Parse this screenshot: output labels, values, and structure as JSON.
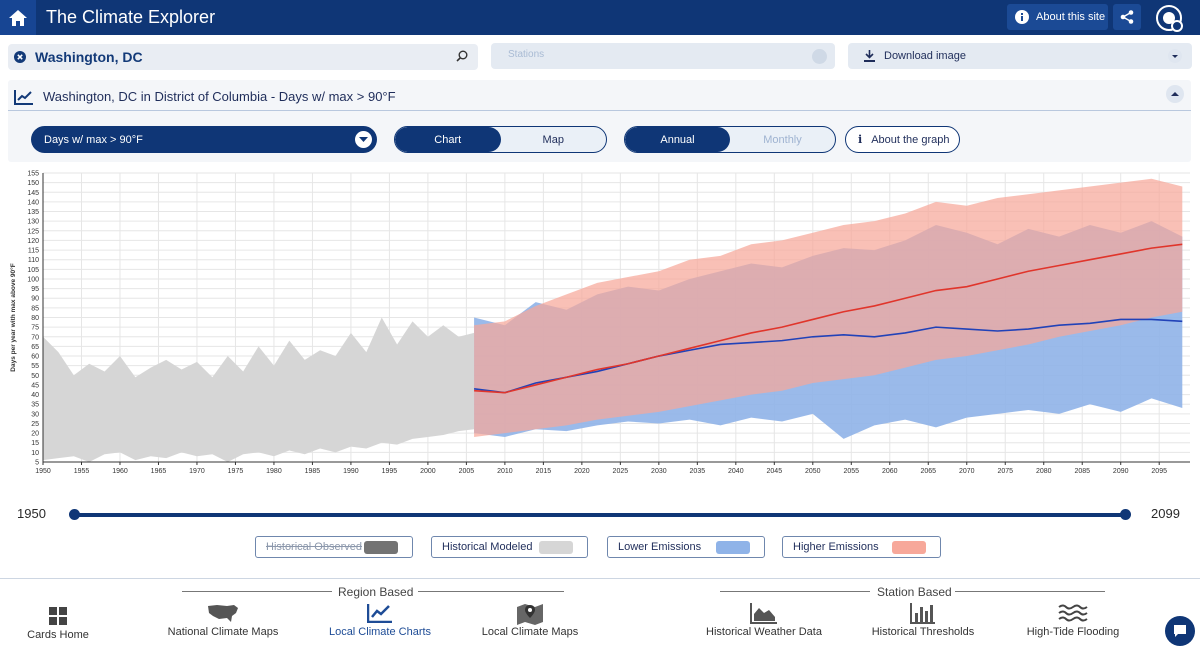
{
  "app": {
    "title": "The Climate Explorer",
    "about_label": "About this site"
  },
  "search": {
    "location": "Washington, DC"
  },
  "stations": {
    "placeholder": "Stations"
  },
  "download": {
    "label": "Download image"
  },
  "panel": {
    "title": "Washington, DC in District of Columbia - Days w/ max > 90°F"
  },
  "variable": {
    "selected": "Days w/ max > 90°F"
  },
  "view_toggle": {
    "chart": "Chart",
    "map": "Map"
  },
  "period_toggle": {
    "annual": "Annual",
    "monthly": "Monthly"
  },
  "about_graph": {
    "label": "About the graph"
  },
  "range": {
    "start": "1950",
    "end": "2099"
  },
  "legend": [
    {
      "label": "Historical Observed",
      "color": "#737373",
      "enabled": false
    },
    {
      "label": "Historical Modeled",
      "color": "#d6d6d6",
      "enabled": true
    },
    {
      "label": "Lower Emissions",
      "color": "#8fb3e8",
      "enabled": true
    },
    {
      "label": "Higher Emissions",
      "color": "#f7a89a",
      "enabled": true
    }
  ],
  "footer": {
    "region_label": "Region Based",
    "station_label": "Station Based",
    "cards_home": "Cards Home",
    "national_maps": "National Climate Maps",
    "local_charts": "Local Climate Charts",
    "local_maps": "Local Climate Maps",
    "weather_data": "Historical Weather Data",
    "thresholds": "Historical Thresholds",
    "tide_flooding": "High-Tide Flooding"
  },
  "chart_data": {
    "type": "area",
    "ylabel": "Days per year with max above 90°F",
    "xlabel": "",
    "xlim": [
      1950,
      2099
    ],
    "ylim": [
      5,
      155
    ],
    "y_ticks": [
      5,
      10,
      15,
      20,
      25,
      30,
      35,
      40,
      45,
      50,
      55,
      60,
      65,
      70,
      75,
      80,
      85,
      90,
      95,
      100,
      105,
      110,
      115,
      120,
      125,
      130,
      135,
      140,
      145,
      150,
      155
    ],
    "x_ticks": [
      1950,
      1955,
      1960,
      1965,
      1970,
      1975,
      1980,
      1985,
      1990,
      1995,
      2000,
      2005,
      2010,
      2015,
      2020,
      2025,
      2030,
      2035,
      2040,
      2045,
      2050,
      2055,
      2060,
      2065,
      2070,
      2075,
      2080,
      2085,
      2090,
      2095
    ],
    "series": [
      {
        "name": "Historical Modeled",
        "color": "#d6d6d6",
        "x": [
          1950,
          1952,
          1954,
          1956,
          1958,
          1960,
          1962,
          1964,
          1966,
          1968,
          1970,
          1972,
          1974,
          1976,
          1978,
          1980,
          1982,
          1984,
          1986,
          1988,
          1990,
          1992,
          1994,
          1996,
          1998,
          2000,
          2002,
          2004,
          2006
        ],
        "min": [
          6,
          7,
          8,
          5,
          9,
          10,
          6,
          8,
          7,
          10,
          8,
          9,
          5,
          9,
          10,
          8,
          11,
          9,
          12,
          10,
          13,
          12,
          15,
          14,
          17,
          18,
          19,
          21,
          22
        ],
        "max": [
          70,
          62,
          50,
          56,
          52,
          60,
          49,
          54,
          58,
          53,
          57,
          49,
          60,
          52,
          65,
          55,
          68,
          58,
          63,
          60,
          72,
          62,
          80,
          66,
          78,
          70,
          76,
          70,
          72
        ]
      },
      {
        "name": "Lower Emissions",
        "color": "#8fb3e8",
        "x": [
          2006,
          2010,
          2014,
          2018,
          2022,
          2026,
          2030,
          2034,
          2038,
          2042,
          2046,
          2050,
          2054,
          2058,
          2062,
          2066,
          2070,
          2074,
          2078,
          2082,
          2086,
          2090,
          2094,
          2098
        ],
        "min": [
          20,
          18,
          22,
          21,
          24,
          26,
          25,
          27,
          24,
          28,
          26,
          30,
          17,
          24,
          27,
          23,
          28,
          30,
          32,
          30,
          35,
          31,
          38,
          33
        ],
        "max": [
          80,
          76,
          88,
          84,
          92,
          96,
          94,
          100,
          104,
          108,
          106,
          112,
          116,
          115,
          120,
          128,
          124,
          118,
          126,
          122,
          128,
          124,
          130,
          122
        ],
        "mean": [
          43,
          41,
          46,
          49,
          52,
          56,
          60,
          63,
          66,
          67,
          68,
          70,
          71,
          70,
          72,
          75,
          74,
          73,
          74,
          76,
          77,
          79,
          79,
          78
        ]
      },
      {
        "name": "Higher Emissions",
        "color": "#f7a89a",
        "x": [
          2006,
          2010,
          2014,
          2018,
          2022,
          2026,
          2030,
          2034,
          2038,
          2042,
          2046,
          2050,
          2054,
          2058,
          2062,
          2066,
          2070,
          2074,
          2078,
          2082,
          2086,
          2090,
          2094,
          2098
        ],
        "min": [
          18,
          20,
          22,
          24,
          27,
          29,
          31,
          34,
          37,
          40,
          42,
          46,
          48,
          50,
          54,
          58,
          60,
          63,
          66,
          70,
          73,
          76,
          80,
          83
        ],
        "max": [
          76,
          78,
          86,
          92,
          98,
          101,
          104,
          110,
          112,
          118,
          120,
          124,
          128,
          130,
          134,
          140,
          138,
          142,
          144,
          146,
          148,
          150,
          152,
          148
        ],
        "mean": [
          42,
          41,
          45,
          49,
          53,
          56,
          60,
          64,
          68,
          72,
          75,
          79,
          83,
          86,
          90,
          94,
          96,
          100,
          104,
          107,
          110,
          113,
          116,
          118
        ]
      }
    ]
  }
}
